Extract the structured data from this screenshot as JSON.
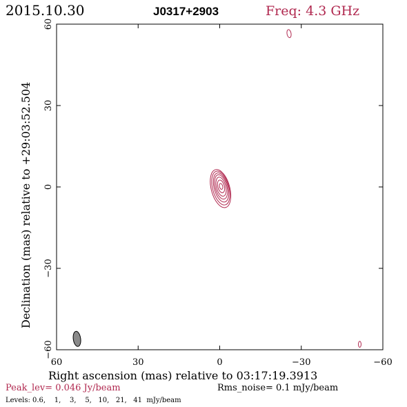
{
  "header": {
    "date": "2015.10.30",
    "source": "J0317+2903",
    "freq": "Freq: 4.3 GHz"
  },
  "footer": {
    "peak": "Peak_lev=  0.046 Jy/beam",
    "rms": "Rms_noise=   0.1 mJy/beam",
    "levels": "Levels: 0.6,    1,    3,    5,   10,   21,   41  mJy/beam"
  },
  "colors": {
    "contour": "#b0284f",
    "frame": "#000000",
    "beam_fill": "#8a8a8a"
  },
  "chart_data": {
    "type": "contour",
    "xlabel": "Right ascension (mas) relative to 03:17:19.3913",
    "ylabel": "Declination (mas) relative to +29:03:52.504",
    "xlim": [
      60,
      -60
    ],
    "ylim": [
      -60,
      60
    ],
    "xticks": [
      60,
      30,
      0,
      -30,
      -60
    ],
    "yticks": [
      -60,
      -30,
      0,
      30,
      60
    ],
    "xtick_labels": [
      "60",
      "30",
      "0",
      "−30",
      "−60"
    ],
    "ytick_labels": [
      "−60",
      "−30",
      "0",
      "30",
      "60"
    ],
    "contour_levels_mjy": [
      0.6,
      1,
      3,
      5,
      10,
      21,
      41
    ],
    "main_component": {
      "center": [
        -0.5,
        0
      ],
      "position_angle_deg": -15,
      "contours": [
        {
          "level": 0.6,
          "a": 3.4,
          "b": 7.2,
          "dx": 0.2,
          "dy": -0.6
        },
        {
          "level": 1,
          "a": 3.0,
          "b": 6.4,
          "dx": 0.1,
          "dy": -0.4
        },
        {
          "level": 3,
          "a": 2.55,
          "b": 5.5,
          "dx": 0.0,
          "dy": -0.2
        },
        {
          "level": 5,
          "a": 2.15,
          "b": 4.6,
          "dx": 0.0,
          "dy": 0.0
        },
        {
          "level": 10,
          "a": 1.7,
          "b": 3.6,
          "dx": 0.0,
          "dy": 0.1
        },
        {
          "level": 21,
          "a": 1.2,
          "b": 2.4,
          "dx": 0.0,
          "dy": 0.2
        },
        {
          "level": 41,
          "a": 0.6,
          "b": 1.1,
          "dx": 0.0,
          "dy": 0.2
        }
      ]
    },
    "noise_features": [
      {
        "x": -25.5,
        "y": 56.5,
        "a": 0.75,
        "b": 1.5,
        "pa": -10
      },
      {
        "x": -51.5,
        "y": -58,
        "a": 0.5,
        "b": 1.1,
        "pa": 0
      }
    ],
    "beam": {
      "x": 52.5,
      "y": -56,
      "a": 1.35,
      "b": 2.8,
      "pa": -8
    }
  }
}
